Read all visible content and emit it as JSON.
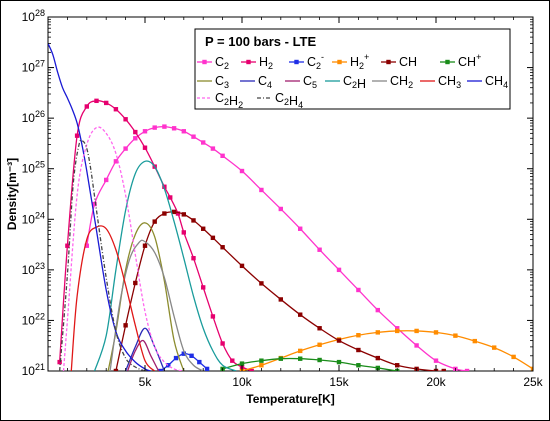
{
  "chart_data": {
    "type": "line",
    "title": "",
    "xlabel": "Temperature[K]",
    "ylabel": "Density[m⁻³]",
    "xlim": [
      0,
      25000
    ],
    "ylim": [
      1e+21,
      1e+28
    ],
    "yscale": "log",
    "grid": false,
    "legend_position": "top-right",
    "legend_title": "P = 100 bars - LTE",
    "x_ticks": [
      {
        "value": 5000,
        "label": "5k"
      },
      {
        "value": 10000,
        "label": "10k"
      },
      {
        "value": 15000,
        "label": "15k"
      },
      {
        "value": 20000,
        "label": "20k"
      },
      {
        "value": 25000,
        "label": "25k"
      }
    ],
    "y_ticks": [
      {
        "exp": 21,
        "base": "10",
        "sup": "21"
      },
      {
        "exp": 22,
        "base": "10",
        "sup": "22"
      },
      {
        "exp": 23,
        "base": "10",
        "sup": "23"
      },
      {
        "exp": 24,
        "base": "10",
        "sup": "24"
      },
      {
        "exp": 25,
        "base": "10",
        "sup": "25"
      },
      {
        "exp": 26,
        "base": "10",
        "sup": "26"
      },
      {
        "exp": 27,
        "base": "10",
        "sup": "27"
      },
      {
        "exp": 28,
        "base": "10",
        "sup": "28"
      }
    ],
    "series": [
      {
        "id": "C2",
        "name": "C₂",
        "base": "C",
        "sub": "2",
        "color": "#ff33cc",
        "marker": "square",
        "dash": "",
        "x": [
          2000,
          2400,
          3000,
          3500,
          4000,
          4500,
          5000,
          5500,
          6000,
          6500,
          7000,
          7500,
          8000,
          8500,
          9000,
          10000,
          11000,
          12000,
          13000,
          14000,
          15000,
          16000,
          17000,
          18000,
          19000,
          20000,
          21000,
          21600
        ],
        "y": [
          3e+23,
          2e+24,
          6e+24,
          1.4e+25,
          2.5e+25,
          4e+25,
          5.5e+25,
          6.5e+25,
          6.8e+25,
          6.3e+25,
          5.5e+25,
          4.3e+25,
          3.3e+25,
          2.5e+25,
          1.8e+25,
          9e+24,
          3.8e+24,
          1.6e+24,
          6.5e+23,
          2.5e+23,
          1e+23,
          4e+22,
          1.6e+22,
          7e+21,
          3.2e+21,
          1.6e+21,
          1.1e+21,
          1e+21
        ]
      },
      {
        "id": "H2",
        "name": "H₂",
        "base": "H",
        "sub": "2",
        "color": "#e6006e",
        "marker": "square",
        "dash": "",
        "x": [
          600,
          1000,
          1500,
          2000,
          2500,
          3000,
          3500,
          4000,
          4500,
          5000,
          5500,
          6000,
          6300,
          6700,
          7000,
          7500,
          8000,
          8500,
          9000,
          9500,
          10000,
          10500
        ],
        "y": [
          1.5e+21,
          3e+23,
          4.5e+25,
          1.7e+26,
          2.2e+26,
          2e+26,
          1.5e+26,
          9.5e+25,
          5.3e+25,
          2.6e+25,
          1.1e+25,
          4.4e+24,
          2.7e+24,
          1.3e+24,
          5.5e+23,
          1.7e+23,
          4.5e+22,
          1.2e+22,
          3.5e+21,
          1.6e+21,
          1.2e+21,
          1e+21
        ]
      },
      {
        "id": "C2-",
        "name": "C₂⁻",
        "base": "C",
        "sub": "2",
        "sup": "-",
        "color": "#1f2ee6",
        "marker": "square",
        "dash": "",
        "x": [
          5800,
          6200,
          6600,
          7000,
          7400,
          7800,
          8200
        ],
        "y": [
          1e+21,
          1.3e+21,
          1.8e+21,
          2.2e+21,
          2e+21,
          1.5e+21,
          1.1e+21
        ]
      },
      {
        "id": "H2+",
        "name": "H₂⁺",
        "base": "H",
        "sub": "2",
        "sup": "+",
        "color": "#ff8c00",
        "marker": "square",
        "dash": "",
        "x": [
          10000,
          11000,
          12000,
          13000,
          14000,
          15000,
          16000,
          17000,
          18000,
          19000,
          20000,
          21000,
          22000,
          23000,
          24000,
          25000
        ],
        "y": [
          1e+21,
          1.3e+21,
          1.8e+21,
          2.5e+21,
          3.3e+21,
          4.2e+21,
          5.1e+21,
          5.8e+21,
          6.2e+21,
          6.2e+21,
          5.8e+21,
          5e+21,
          3.9e+21,
          2.9e+21,
          1.9e+21,
          1.1e+21
        ]
      },
      {
        "id": "CH",
        "name": "CH",
        "base": "CH",
        "color": "#8b0000",
        "marker": "square",
        "dash": "",
        "x": [
          3500,
          4000,
          4500,
          5000,
          5500,
          6000,
          6500,
          7000,
          7500,
          8000,
          8500,
          9000,
          10000,
          11000,
          12000,
          13000,
          14000,
          15000,
          16000,
          17000,
          18000,
          19000,
          20000,
          20400
        ],
        "y": [
          1e+21,
          8e+21,
          5.5e+22,
          3e+23,
          9e+23,
          1.3e+24,
          1.4e+24,
          1.25e+24,
          9.5e+23,
          6.5e+23,
          4.3e+23,
          2.8e+23,
          1.2e+23,
          5.4e+22,
          2.6e+22,
          1.3e+22,
          7e+21,
          4e+21,
          2.6e+21,
          1.8e+21,
          1.3e+21,
          1.1e+21,
          1e+21,
          1e+21
        ]
      },
      {
        "id": "CH+",
        "name": "CH⁺",
        "base": "CH",
        "sup": "+",
        "color": "#1a8c1a",
        "marker": "square",
        "dash": "",
        "x": [
          9000,
          10000,
          11000,
          12000,
          13000,
          14000,
          15000,
          16000,
          17000,
          18000
        ],
        "y": [
          1.1e+21,
          1.4e+21,
          1.6e+21,
          1.75e+21,
          1.75e+21,
          1.65e+21,
          1.5e+21,
          1.3e+21,
          1.15e+21,
          1e+21
        ]
      },
      {
        "id": "C3",
        "name": "C₃",
        "base": "C",
        "sub": "3",
        "color": "#8c8c2e",
        "marker": "",
        "dash": "",
        "x": [
          3100,
          3500,
          4000,
          4500,
          5000,
          5500,
          6000,
          6500,
          7000
        ],
        "y": [
          1e+21,
          6e+21,
          1e+23,
          5e+23,
          8.5e+23,
          4.5e+23,
          6e+22,
          4e+21,
          1e+21
        ]
      },
      {
        "id": "C4",
        "name": "C₄",
        "base": "C",
        "sub": "4",
        "color": "#2a2ab8",
        "marker": "",
        "dash": "",
        "x": [
          4000,
          4500,
          5000,
          5500,
          6000
        ],
        "y": [
          1e+21,
          3e+21,
          7e+21,
          3e+21,
          1e+21
        ]
      },
      {
        "id": "C5",
        "name": "C₅",
        "base": "C",
        "sub": "5",
        "color": "#a0206e",
        "marker": "",
        "dash": "",
        "x": [
          4100,
          4500,
          4900,
          5300,
          5700
        ],
        "y": [
          1e+21,
          2.5e+21,
          4e+21,
          2e+21,
          1e+21
        ]
      },
      {
        "id": "C2H",
        "name": "C₂H",
        "base": "C",
        "sub": "2",
        "tail": "H",
        "color": "#1a9c9c",
        "marker": "",
        "dash": "",
        "x": [
          2400,
          3000,
          3500,
          4000,
          4500,
          5000,
          5500,
          6000,
          6500,
          7000,
          7500,
          8000,
          8500,
          9000,
          9700
        ],
        "y": [
          1e+21,
          5e+21,
          1e+23,
          1.5e+24,
          8e+24,
          1.4e+25,
          1.1e+25,
          4e+24,
          9e+23,
          1.7e+23,
          3e+22,
          7e+21,
          2.5e+21,
          1.3e+21,
          1e+21
        ]
      },
      {
        "id": "CH2",
        "name": "CH₂",
        "base": "CH",
        "sub": "2",
        "color": "#888888",
        "marker": "",
        "dash": "",
        "x": [
          3200,
          3700,
          4200,
          4700,
          5000,
          5500,
          6000,
          6500,
          7000,
          7500,
          8000
        ],
        "y": [
          1e+21,
          2.2e+22,
          1.6e+23,
          3.5e+23,
          3.6e+23,
          2.2e+23,
          7e+22,
          1.2e+22,
          2.5e+21,
          1.3e+21,
          1e+21
        ]
      },
      {
        "id": "CH3",
        "name": "CH₃",
        "base": "CH",
        "sub": "3",
        "color": "#e01818",
        "marker": "",
        "dash": "",
        "x": [
          1200,
          1500,
          2000,
          2500,
          3000,
          3500,
          4000,
          4500,
          5000,
          5500
        ],
        "y": [
          1e+21,
          3e+22,
          4e+23,
          7e+23,
          6.5e+23,
          2.5e+23,
          5e+22,
          8e+21,
          1.6e+21,
          1e+21
        ]
      },
      {
        "id": "CH4",
        "name": "CH₄",
        "base": "CH",
        "sub": "4",
        "color": "#1a1ad4",
        "marker": "",
        "dash": "",
        "x": [
          0,
          250,
          500,
          750,
          1000,
          1250,
          1500,
          1750,
          2000,
          2500,
          3000,
          3500,
          4000,
          4500,
          5000,
          5300
        ],
        "y": [
          3e+27,
          1.8e+27,
          8e+26,
          4e+26,
          2.5e+26,
          1.5e+26,
          8e+25,
          3e+25,
          9e+24,
          6e+23,
          4e+22,
          6e+21,
          2.5e+21,
          1.5e+21,
          1.1e+21,
          1e+21
        ]
      },
      {
        "id": "C2H2",
        "name": "C₂H₂",
        "base": "C",
        "sub": "2",
        "tail": "H",
        "tailsub": "2",
        "color": "#ff66ee",
        "marker": "",
        "dash": "3,2",
        "x": [
          800,
          1000,
          1500,
          2000,
          2500,
          3000,
          3500,
          4000,
          4500,
          5000,
          5500,
          6000,
          6500,
          7000
        ],
        "y": [
          1e+21,
          1e+22,
          3e+24,
          3e+25,
          6.5e+25,
          5e+25,
          2e+25,
          3e+24,
          2e+23,
          1.5e+22,
          3e+21,
          1.5e+21,
          1.1e+21,
          1e+21
        ]
      },
      {
        "id": "C2H4",
        "name": "C₂H₄",
        "base": "C",
        "sub": "2",
        "tail": "H",
        "tailsub": "4",
        "color": "#444444",
        "marker": "",
        "dash": "4,2,1,2",
        "x": [
          600,
          1000,
          1300,
          1600,
          1800,
          2000,
          2200,
          2500,
          3000,
          3500,
          4000,
          4500,
          5000
        ],
        "y": [
          1e+21,
          8e+22,
          5e+24,
          3e+25,
          3.5e+25,
          2.5e+25,
          1e+25,
          1.5e+24,
          7e+22,
          6e+21,
          1.8e+21,
          1.2e+21,
          1e+21
        ]
      }
    ]
  }
}
